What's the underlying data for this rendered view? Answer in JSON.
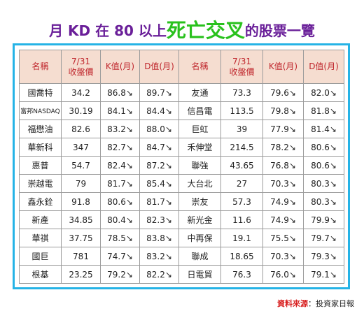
{
  "title": {
    "prefix": "月 KD 在 80 以上",
    "highlight": "死亡交叉",
    "suffix": "的股票一覽"
  },
  "table": {
    "headers": [
      "名稱",
      "7/31\n收盤價",
      "K值(月)",
      "D值(月)",
      "名稱",
      "7/31\n收盤價",
      "K值(月)",
      "D值(月)"
    ],
    "rows": [
      [
        "國喬特",
        "34.2",
        "86.8↘",
        "89.7↘",
        "友通",
        "73.3",
        "79.6↘",
        "82.0↘"
      ],
      [
        "富邦NASDAQ",
        "30.19",
        "84.1↘",
        "84.4↘",
        "信昌電",
        "113.5",
        "79.8↘",
        "81.8↘"
      ],
      [
        "福懋油",
        "82.6",
        "83.2↘",
        "88.0↘",
        "巨虹",
        "39",
        "77.9↘",
        "81.4↘"
      ],
      [
        "華新科",
        "347",
        "82.7↘",
        "84.7↘",
        "禾伸堂",
        "214.5",
        "78.2↘",
        "80.6↘"
      ],
      [
        "惠普",
        "54.7",
        "82.4↘",
        "87.2↘",
        "聯強",
        "43.65",
        "76.8↘",
        "80.6↘"
      ],
      [
        "崇越電",
        "79",
        "81.7↘",
        "85.4↘",
        "大台北",
        "27",
        "70.3↘",
        "80.3↘"
      ],
      [
        "鑫永銓",
        "91.8",
        "80.6↘",
        "81.7↘",
        "崇友",
        "57.3",
        "74.9↘",
        "80.3↘"
      ],
      [
        "新產",
        "34.85",
        "80.4↘",
        "82.3↘",
        "新光金",
        "11.6",
        "74.9↘",
        "79.9↘"
      ],
      [
        "華祺",
        "37.75",
        "78.5↘",
        "83.8↘",
        "中再保",
        "19.1",
        "75.5↘",
        "79.7↘"
      ],
      [
        "國巨",
        "781",
        "74.7↘",
        "83.2↘",
        "聯成",
        "18.65",
        "70.3↘",
        "79.3↘"
      ],
      [
        "根基",
        "23.25",
        "79.2↘",
        "82.2↘",
        "日電貿",
        "76.3",
        "76.0↘",
        "79.1↘"
      ]
    ]
  },
  "source": {
    "label": "資料來源",
    "text": "：投資家日報"
  }
}
